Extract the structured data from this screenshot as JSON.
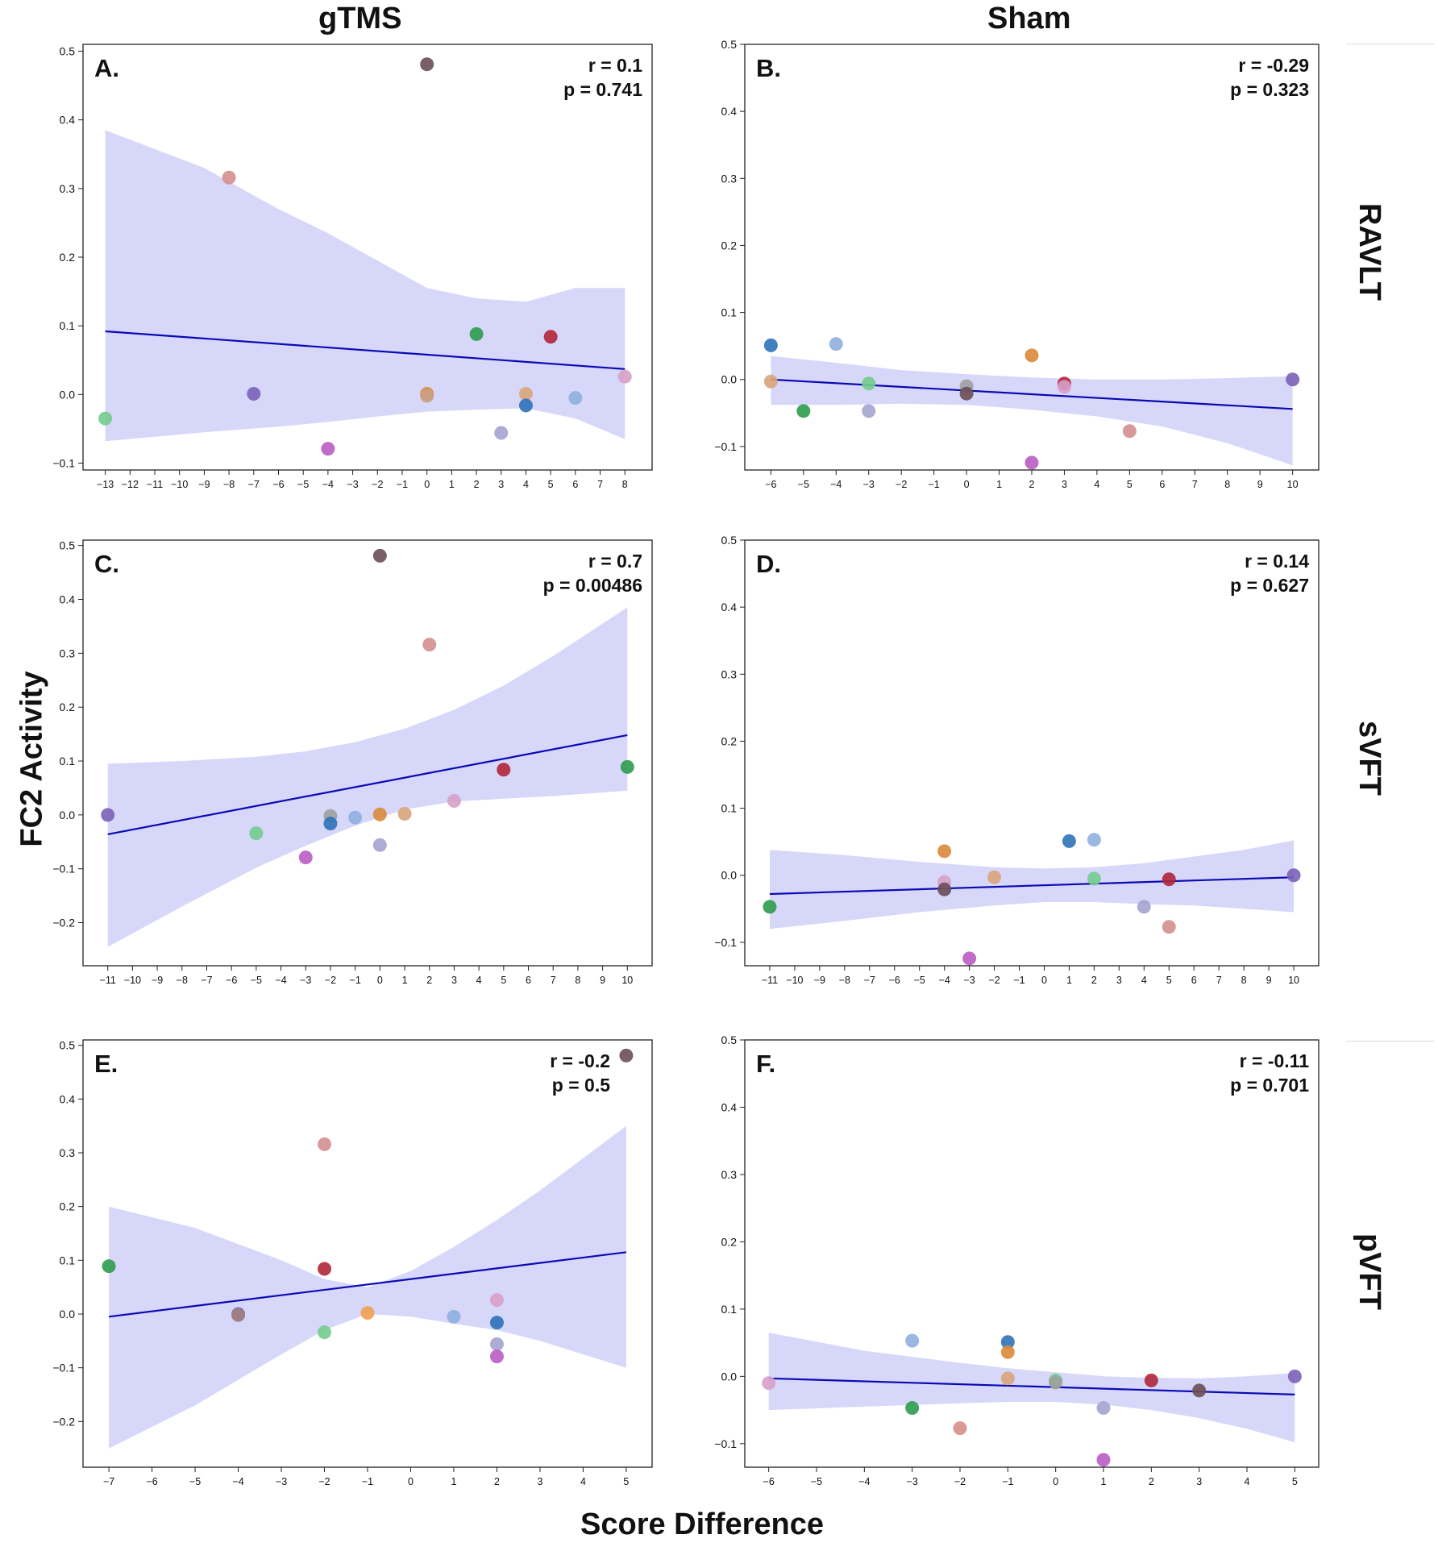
{
  "figure": {
    "column_titles": [
      "gTMS",
      "Sham"
    ],
    "row_titles": [
      "RAVLT",
      "sVFT",
      "pVFT"
    ],
    "ylabel": "FC2 Activity",
    "xlabel": "Score Difference"
  },
  "chart_data": [
    {
      "type": "scatter",
      "panel": "A.",
      "r_text": "r = 0.1",
      "p_text": "p = 0.741",
      "xlim": [
        -13.9,
        9.1
      ],
      "ylim": [
        -0.11,
        0.51
      ],
      "xticks": [
        -13,
        -12,
        -11,
        -10,
        -9,
        -8,
        -7,
        -6,
        -5,
        -4,
        -3,
        -2,
        -1,
        0,
        1,
        2,
        3,
        4,
        5,
        6,
        7,
        8
      ],
      "yticks": [
        -0.1,
        0.0,
        0.1,
        0.2,
        0.3,
        0.4,
        0.5
      ],
      "ytick_labels": [
        "−0.1",
        "0.0",
        "0.1",
        "0.2",
        "0.3",
        "0.4",
        "0.5"
      ],
      "fit": {
        "x": [
          -13,
          8
        ],
        "y": [
          0.092,
          0.037
        ]
      },
      "band": {
        "x": [
          -13,
          -9,
          -6,
          -4,
          -2,
          0,
          2,
          4,
          6,
          8
        ],
        "upper": [
          0.385,
          0.33,
          0.27,
          0.235,
          0.195,
          0.155,
          0.14,
          0.135,
          0.155,
          0.155
        ],
        "lower": [
          -0.068,
          -0.055,
          -0.047,
          -0.04,
          -0.032,
          -0.025,
          -0.022,
          -0.02,
          -0.035,
          -0.065
        ]
      },
      "points": [
        {
          "x": 0,
          "y": 0.481,
          "color": "#6b4e55"
        },
        {
          "x": -8,
          "y": 0.316,
          "color": "#d48e8e"
        },
        {
          "x": 2,
          "y": 0.088,
          "color": "#2e9b4e"
        },
        {
          "x": 5,
          "y": 0.084,
          "color": "#b0263a"
        },
        {
          "x": -7,
          "y": 0.001,
          "color": "#7a62b8"
        },
        {
          "x": 0,
          "y": 0.001,
          "color": "#d98a3a"
        },
        {
          "x": 0,
          "y": -0.002,
          "color": "#c9a088"
        },
        {
          "x": 4,
          "y": 0.001,
          "color": "#d8a57a"
        },
        {
          "x": 8,
          "y": 0.026,
          "color": "#d8a0c8"
        },
        {
          "x": 6,
          "y": -0.005,
          "color": "#8fb0de"
        },
        {
          "x": 4,
          "y": -0.016,
          "color": "#2d72b8"
        },
        {
          "x": 3,
          "y": -0.056,
          "color": "#a3a3cf"
        },
        {
          "x": -13,
          "y": -0.035,
          "color": "#74cc8e"
        },
        {
          "x": -4,
          "y": -0.079,
          "color": "#bb5cc4"
        }
      ]
    },
    {
      "type": "scatter",
      "panel": "B.",
      "r_text": "r = -0.29",
      "p_text": "p = 0.323",
      "xlim": [
        -6.8,
        10.8
      ],
      "ylim": [
        -0.135,
        0.5
      ],
      "xticks": [
        -6,
        -5,
        -4,
        -3,
        -2,
        -1,
        0,
        1,
        2,
        3,
        4,
        5,
        6,
        7,
        8,
        9,
        10
      ],
      "yticks": [
        -0.1,
        0.0,
        0.1,
        0.2,
        0.3,
        0.4,
        0.5
      ],
      "ytick_labels": [
        "−0.1",
        "0.0",
        "0.1",
        "0.2",
        "0.3",
        "0.4",
        "0.5"
      ],
      "fit": {
        "x": [
          -6,
          10
        ],
        "y": [
          0.0,
          -0.044
        ]
      },
      "band": {
        "x": [
          -6,
          -4,
          -2,
          0,
          2,
          4,
          6,
          8,
          10
        ],
        "upper": [
          0.035,
          0.025,
          0.014,
          0.008,
          0.003,
          0.0,
          0.0,
          0.002,
          0.005
        ],
        "lower": [
          -0.038,
          -0.038,
          -0.036,
          -0.038,
          -0.045,
          -0.055,
          -0.07,
          -0.095,
          -0.128
        ]
      },
      "points": [
        {
          "x": -6,
          "y": 0.051,
          "color": "#2d72b8"
        },
        {
          "x": -4,
          "y": 0.053,
          "color": "#8fb0de"
        },
        {
          "x": 2,
          "y": 0.036,
          "color": "#d98a3a"
        },
        {
          "x": -6,
          "y": -0.003,
          "color": "#d8a57a"
        },
        {
          "x": -5,
          "y": -0.047,
          "color": "#2e9b4e"
        },
        {
          "x": -3,
          "y": -0.006,
          "color": "#74cc8e"
        },
        {
          "x": -3,
          "y": -0.047,
          "color": "#a3a3cf"
        },
        {
          "x": 0,
          "y": -0.01,
          "color": "#a0a0a0"
        },
        {
          "x": 0,
          "y": -0.021,
          "color": "#6b4e55"
        },
        {
          "x": 3,
          "y": -0.006,
          "color": "#b0263a"
        },
        {
          "x": 3,
          "y": -0.011,
          "color": "#d8a0c8"
        },
        {
          "x": 5,
          "y": -0.077,
          "color": "#d48e8e"
        },
        {
          "x": 2,
          "y": -0.124,
          "color": "#bb5cc4"
        },
        {
          "x": 10,
          "y": 0.0,
          "color": "#7a62b8"
        }
      ]
    },
    {
      "type": "scatter",
      "panel": "C.",
      "r_text": "r = 0.7",
      "p_text": "p = 0.00486",
      "xlim": [
        -12.0,
        11.0
      ],
      "ylim": [
        -0.28,
        0.51
      ],
      "xticks": [
        -11,
        -10,
        -9,
        -8,
        -7,
        -6,
        -5,
        -4,
        -3,
        -2,
        -1,
        0,
        1,
        2,
        3,
        4,
        5,
        6,
        7,
        8,
        9,
        10
      ],
      "yticks": [
        -0.2,
        -0.1,
        0.0,
        0.1,
        0.2,
        0.3,
        0.4,
        0.5
      ],
      "ytick_labels": [
        "−0.2",
        "−0.1",
        "0.0",
        "0.1",
        "0.2",
        "0.3",
        "0.4",
        "0.5"
      ],
      "fit": {
        "x": [
          -11,
          10
        ],
        "y": [
          -0.036,
          0.148
        ]
      },
      "band": {
        "x": [
          -11,
          -8,
          -5,
          -3,
          -1,
          1,
          3,
          5,
          7,
          10
        ],
        "upper": [
          0.095,
          0.1,
          0.108,
          0.118,
          0.135,
          0.16,
          0.195,
          0.24,
          0.295,
          0.385
        ],
        "lower": [
          -0.245,
          -0.17,
          -0.098,
          -0.057,
          -0.02,
          0.01,
          0.025,
          0.03,
          0.035,
          0.045
        ]
      },
      "points": [
        {
          "x": 0,
          "y": 0.481,
          "color": "#6b4e55"
        },
        {
          "x": 2,
          "y": 0.316,
          "color": "#d48e8e"
        },
        {
          "x": 10,
          "y": 0.089,
          "color": "#2e9b4e"
        },
        {
          "x": 5,
          "y": 0.084,
          "color": "#b0263a"
        },
        {
          "x": -11,
          "y": 0.0,
          "color": "#7a62b8"
        },
        {
          "x": -2,
          "y": -0.002,
          "color": "#a0a0a0"
        },
        {
          "x": 0,
          "y": 0.001,
          "color": "#d98a3a"
        },
        {
          "x": 1,
          "y": 0.002,
          "color": "#d8a57a"
        },
        {
          "x": 3,
          "y": 0.026,
          "color": "#d8a0c8"
        },
        {
          "x": -1,
          "y": -0.005,
          "color": "#8fb0de"
        },
        {
          "x": -2,
          "y": -0.016,
          "color": "#2d72b8"
        },
        {
          "x": 0,
          "y": -0.056,
          "color": "#a3a3cf"
        },
        {
          "x": -5,
          "y": -0.034,
          "color": "#74cc8e"
        },
        {
          "x": -3,
          "y": -0.079,
          "color": "#bb5cc4"
        }
      ]
    },
    {
      "type": "scatter",
      "panel": "D.",
      "r_text": "r = 0.14",
      "p_text": "p = 0.627",
      "xlim": [
        -12.0,
        11.0
      ],
      "ylim": [
        -0.135,
        0.5
      ],
      "xticks": [
        -11,
        -10,
        -9,
        -8,
        -7,
        -6,
        -5,
        -4,
        -3,
        -2,
        -1,
        0,
        1,
        2,
        3,
        4,
        5,
        6,
        7,
        8,
        9,
        10
      ],
      "yticks": [
        -0.1,
        0.0,
        0.1,
        0.2,
        0.3,
        0.4,
        0.5
      ],
      "ytick_labels": [
        "−0.1",
        "0.0",
        "0.1",
        "0.2",
        "0.3",
        "0.4",
        "0.5"
      ],
      "fit": {
        "x": [
          -11,
          10
        ],
        "y": [
          -0.028,
          -0.003
        ]
      },
      "band": {
        "x": [
          -11,
          -8,
          -5,
          -2,
          0,
          2,
          4,
          6,
          8,
          10
        ],
        "upper": [
          0.038,
          0.03,
          0.02,
          0.012,
          0.01,
          0.012,
          0.018,
          0.028,
          0.038,
          0.052
        ],
        "lower": [
          -0.08,
          -0.068,
          -0.055,
          -0.045,
          -0.04,
          -0.04,
          -0.043,
          -0.045,
          -0.05,
          -0.055
        ]
      },
      "points": [
        {
          "x": -4,
          "y": 0.036,
          "color": "#d98a3a"
        },
        {
          "x": 1,
          "y": 0.051,
          "color": "#2d72b8"
        },
        {
          "x": 2,
          "y": 0.053,
          "color": "#8fb0de"
        },
        {
          "x": -11,
          "y": -0.047,
          "color": "#2e9b4e"
        },
        {
          "x": -4,
          "y": -0.01,
          "color": "#d8a0c8"
        },
        {
          "x": -4,
          "y": -0.021,
          "color": "#6b4e55"
        },
        {
          "x": -2,
          "y": -0.003,
          "color": "#d8a57a"
        },
        {
          "x": 2,
          "y": -0.005,
          "color": "#74cc8e"
        },
        {
          "x": 4,
          "y": -0.047,
          "color": "#a3a3cf"
        },
        {
          "x": 5,
          "y": -0.006,
          "color": "#b0263a"
        },
        {
          "x": 5,
          "y": -0.077,
          "color": "#d48e8e"
        },
        {
          "x": -3,
          "y": -0.124,
          "color": "#bb5cc4"
        },
        {
          "x": 10,
          "y": 0.0,
          "color": "#7a62b8"
        }
      ]
    },
    {
      "type": "scatter",
      "panel": "E.",
      "r_text": "r = -0.2",
      "p_text": "p = 0.5",
      "xlim": [
        -7.6,
        5.6
      ],
      "ylim": [
        -0.285,
        0.51
      ],
      "xticks": [
        -7,
        -6,
        -5,
        -4,
        -3,
        -2,
        -1,
        0,
        1,
        2,
        3,
        4,
        5
      ],
      "yticks": [
        -0.2,
        -0.1,
        0.0,
        0.1,
        0.2,
        0.3,
        0.4,
        0.5
      ],
      "ytick_labels": [
        "−0.2",
        "−0.1",
        "0.0",
        "0.1",
        "0.2",
        "0.3",
        "0.4",
        "0.5"
      ],
      "fit": {
        "x": [
          -7,
          5
        ],
        "y": [
          -0.005,
          0.115
        ]
      },
      "band": {
        "x": [
          -7,
          -5,
          -3,
          -2,
          -1,
          0,
          1,
          2,
          3,
          4,
          5
        ],
        "upper": [
          0.2,
          0.16,
          0.1,
          0.065,
          0.05,
          0.08,
          0.125,
          0.175,
          0.23,
          0.29,
          0.35
        ],
        "lower": [
          -0.25,
          -0.17,
          -0.075,
          -0.03,
          0.0,
          -0.005,
          -0.018,
          -0.03,
          -0.05,
          -0.075,
          -0.1
        ]
      },
      "points": [
        {
          "x": 5,
          "y": 0.481,
          "color": "#6b4e55"
        },
        {
          "x": -2,
          "y": 0.316,
          "color": "#d48e8e"
        },
        {
          "x": -7,
          "y": 0.089,
          "color": "#2e9b4e"
        },
        {
          "x": -2,
          "y": 0.084,
          "color": "#b0263a"
        },
        {
          "x": -4,
          "y": 0.0,
          "color": "#7a62b8"
        },
        {
          "x": -4,
          "y": -0.002,
          "color": "#a08080"
        },
        {
          "x": -1,
          "y": 0.002,
          "color": "#f0a050"
        },
        {
          "x": -2,
          "y": -0.034,
          "color": "#74cc8e"
        },
        {
          "x": 1,
          "y": -0.005,
          "color": "#8fb0de"
        },
        {
          "x": 2,
          "y": 0.026,
          "color": "#d8a0c8"
        },
        {
          "x": 2,
          "y": -0.016,
          "color": "#2d72b8"
        },
        {
          "x": 2,
          "y": -0.056,
          "color": "#a3a3cf"
        },
        {
          "x": 2,
          "y": -0.079,
          "color": "#bb5cc4"
        }
      ]
    },
    {
      "type": "scatter",
      "panel": "F.",
      "r_text": "r = -0.11",
      "p_text": "p = 0.701",
      "xlim": [
        -6.5,
        5.5
      ],
      "ylim": [
        -0.135,
        0.5
      ],
      "xticks": [
        -6,
        -5,
        -4,
        -3,
        -2,
        -1,
        0,
        1,
        2,
        3,
        4,
        5
      ],
      "yticks": [
        -0.1,
        0.0,
        0.1,
        0.2,
        0.3,
        0.4,
        0.5
      ],
      "ytick_labels": [
        "−0.1",
        "0.0",
        "0.1",
        "0.2",
        "0.3",
        "0.4",
        "0.5"
      ],
      "fit": {
        "x": [
          -6,
          5
        ],
        "y": [
          -0.003,
          -0.027
        ]
      },
      "band": {
        "x": [
          -6,
          -4,
          -2,
          -1,
          0,
          1,
          2,
          3,
          4,
          5
        ],
        "upper": [
          0.065,
          0.038,
          0.02,
          0.012,
          0.006,
          0.0,
          -0.002,
          -0.003,
          0.0,
          0.005
        ],
        "lower": [
          -0.05,
          -0.045,
          -0.04,
          -0.038,
          -0.038,
          -0.042,
          -0.05,
          -0.062,
          -0.078,
          -0.098
        ]
      },
      "points": [
        {
          "x": -3,
          "y": 0.053,
          "color": "#8fb0de"
        },
        {
          "x": -1,
          "y": 0.051,
          "color": "#2d72b8"
        },
        {
          "x": -1,
          "y": 0.036,
          "color": "#d98a3a"
        },
        {
          "x": -6,
          "y": -0.01,
          "color": "#d8a0c8"
        },
        {
          "x": -3,
          "y": -0.047,
          "color": "#2e9b4e"
        },
        {
          "x": -2,
          "y": -0.077,
          "color": "#d48e8e"
        },
        {
          "x": -1,
          "y": -0.003,
          "color": "#d8a57a"
        },
        {
          "x": 0,
          "y": -0.006,
          "color": "#74cc8e"
        },
        {
          "x": 0,
          "y": -0.009,
          "color": "#a0a0a0"
        },
        {
          "x": 1,
          "y": -0.047,
          "color": "#a3a3cf"
        },
        {
          "x": 1,
          "y": -0.124,
          "color": "#bb5cc4"
        },
        {
          "x": 2,
          "y": -0.006,
          "color": "#b0263a"
        },
        {
          "x": 3,
          "y": -0.021,
          "color": "#6b4e55"
        },
        {
          "x": 5,
          "y": 0.0,
          "color": "#7a62b8"
        }
      ]
    }
  ]
}
